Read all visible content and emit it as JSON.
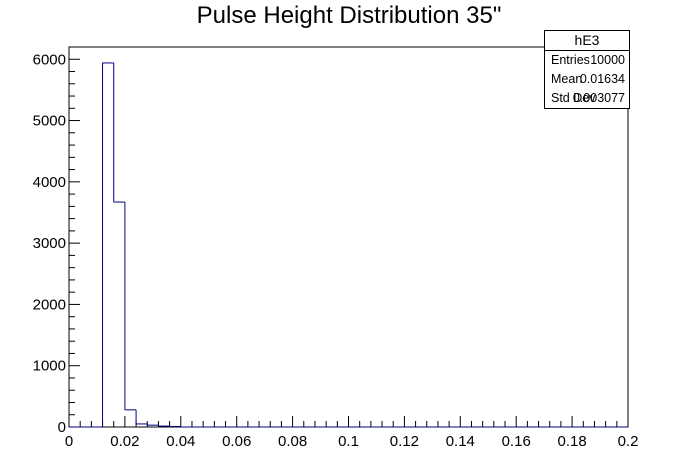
{
  "chart_data": {
    "type": "bar",
    "title": "Pulse Height Distribution 35\"",
    "xlabel": "",
    "ylabel": "",
    "xlim": [
      0,
      0.2
    ],
    "ylim": [
      0,
      6200
    ],
    "x_ticks": [
      "0",
      "0.02",
      "0.04",
      "0.06",
      "0.08",
      "0.1",
      "0.12",
      "0.14",
      "0.16",
      "0.18",
      "0.2"
    ],
    "x_tick_values": [
      0,
      0.02,
      0.04,
      0.06,
      0.08,
      0.1,
      0.12,
      0.14,
      0.16,
      0.18,
      0.2
    ],
    "y_ticks": [
      "0",
      "1000",
      "2000",
      "3000",
      "4000",
      "5000",
      "6000"
    ],
    "y_tick_values": [
      0,
      1000,
      2000,
      3000,
      4000,
      5000,
      6000
    ],
    "bin_width": 0.004,
    "bin_edges_start": 0.0,
    "values": [
      0,
      0,
      0,
      5940,
      3670,
      280,
      50,
      30,
      15,
      8,
      0,
      0,
      0,
      0,
      0,
      0,
      0,
      0,
      0,
      0,
      0,
      0,
      0,
      0,
      0,
      0,
      0,
      0,
      0,
      0,
      0,
      0,
      0,
      0,
      0,
      0,
      0,
      0,
      0,
      0,
      0,
      0,
      0,
      0,
      0,
      0,
      0,
      0,
      0,
      0
    ],
    "line_color": "#000080",
    "grid": false,
    "stats_box": {
      "name": "hE3",
      "entries_label": "Entries",
      "entries": "10000",
      "mean_label": "Mean",
      "mean": "0.01634",
      "std_label": "Std Dev",
      "std": "0.003077"
    }
  }
}
